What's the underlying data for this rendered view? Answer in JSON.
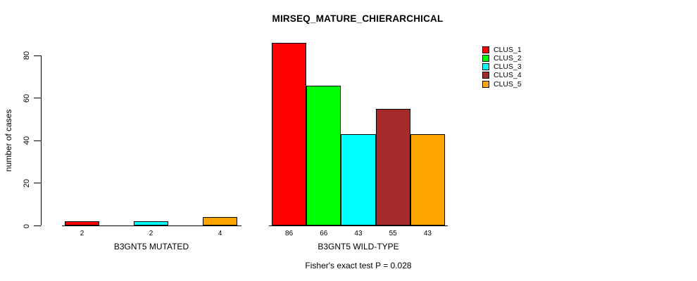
{
  "title": "MIRSEQ_MATURE_CHIERARCHICAL",
  "chart_data": {
    "type": "bar",
    "title": "MIRSEQ_MATURE_CHIERARCHICAL",
    "xlabel": "",
    "ylabel": "number of cases",
    "ylim": [
      0,
      86
    ],
    "yticks": [
      0,
      20,
      40,
      60,
      80
    ],
    "grid": false,
    "legend_position": "right",
    "series_names": [
      "CLUS_1",
      "CLUS_2",
      "CLUS_3",
      "CLUS_4",
      "CLUS_5"
    ],
    "colors": [
      "#FF0000",
      "#00FF00",
      "#00FFFF",
      "#A52A2A",
      "#FFA500"
    ],
    "groups": [
      {
        "label": "B3GNT5 MUTATED",
        "values": [
          2,
          0,
          2,
          0,
          4
        ],
        "bar_labels": [
          "2",
          null,
          "2",
          null,
          "4"
        ]
      },
      {
        "label": "B3GNT5 WILD-TYPE",
        "values": [
          86,
          66,
          43,
          55,
          43
        ],
        "bar_labels": [
          "86",
          "66",
          "43",
          "55",
          "43"
        ]
      }
    ],
    "annotation": "Fisher's exact test P = 0.028"
  }
}
